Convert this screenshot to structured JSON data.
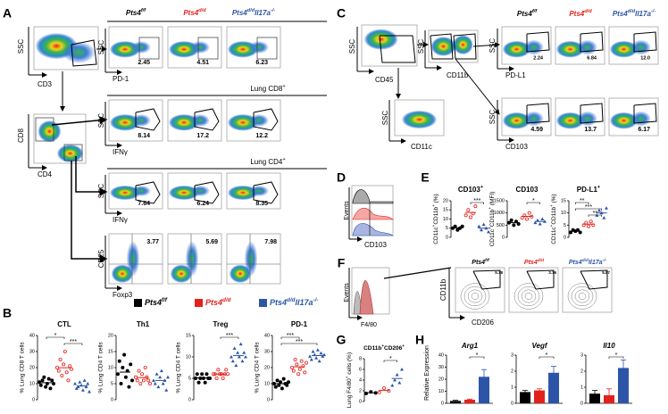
{
  "genotypes": [
    {
      "color": "#000000",
      "label": [
        {
          "t": "Pts4"
        },
        {
          "sup": "f/f"
        }
      ]
    },
    {
      "color": "#e3211c",
      "label": [
        {
          "t": "Pts4"
        },
        {
          "sup": "d/d"
        }
      ]
    },
    {
      "color": "#2c55a8",
      "label": [
        {
          "t": "Pts4"
        },
        {
          "sup": "d/d"
        },
        {
          "t": "Il17a"
        },
        {
          "sup": "-/-"
        }
      ]
    }
  ],
  "A": {
    "letter": "A",
    "gate1": {
      "y": "SSC",
      "x": "CD3"
    },
    "gate2": {
      "y": "CD8",
      "x": "CD4"
    },
    "rows": [
      {
        "y": "SSC",
        "x": "PD-1",
        "numbers": [
          "2.45",
          "4.51",
          "6.23"
        ]
      },
      {
        "section": [
          {
            "t": "Lung CD8"
          },
          {
            "sup": "+"
          }
        ],
        "y": "SSC",
        "x": "IFNγ",
        "numbers": [
          "8.14",
          "17.2",
          "12.2"
        ]
      },
      {
        "section": [
          {
            "t": "Lung CD4"
          },
          {
            "sup": "+"
          }
        ],
        "y": "SSC",
        "x": "IFNγ",
        "numbers": [
          "7.64",
          "6.24",
          "8.35"
        ]
      },
      {
        "y": "CD25",
        "x": "Foxp3",
        "numbers": [
          "3.77",
          "5.69",
          "7.98"
        ]
      }
    ]
  },
  "B": {
    "letter": "B",
    "charts": [
      {
        "title": "CTL",
        "ylabel": "% Lung CD8 T cells",
        "ylim": [
          0,
          40
        ],
        "yticks": [
          0,
          10,
          20,
          30,
          40
        ],
        "groups": [
          [
            11,
            9,
            12,
            14,
            8,
            10,
            13,
            7,
            12,
            10
          ],
          [
            20,
            18,
            25,
            15,
            22,
            30,
            17,
            12,
            21,
            19
          ],
          [
            10,
            7,
            8,
            11,
            9,
            6,
            12,
            8,
            10,
            5
          ]
        ],
        "sig": {
          "1-2": "*",
          "2-3": "***"
        }
      },
      {
        "title": "Th1",
        "ylabel": "% Lung CD4 T cells",
        "ylim": [
          0,
          20
        ],
        "yticks": [
          0,
          5,
          10,
          15,
          20
        ],
        "groups": [
          [
            8,
            12,
            5,
            10,
            14,
            7,
            9,
            4,
            11,
            6
          ],
          [
            7,
            6,
            9,
            5,
            8,
            6,
            10,
            7,
            6,
            5
          ],
          [
            6,
            5,
            8,
            4,
            7,
            9,
            5,
            6,
            3,
            7
          ]
        ],
        "sig": {}
      },
      {
        "title": "Treg",
        "ylabel": "% Lung CD4 T cells",
        "ylim": [
          0,
          15
        ],
        "yticks": [
          0,
          5,
          10,
          15
        ],
        "groups": [
          [
            5,
            6,
            4,
            5,
            6,
            5,
            4,
            6,
            5,
            5
          ],
          [
            6,
            6,
            5,
            7,
            6,
            6,
            5,
            6,
            7,
            6
          ],
          [
            10,
            9,
            12,
            8,
            11,
            10,
            13,
            9,
            11,
            10
          ]
        ],
        "sig": {
          "2-3": "***"
        }
      },
      {
        "title": "PD-1",
        "ylabel": "% Lung CD4 T cells",
        "ylim": [
          0,
          40
        ],
        "yticks": [
          0,
          10,
          20,
          30,
          40
        ],
        "groups": [
          [
            10,
            8,
            12,
            9,
            11,
            7,
            13,
            10,
            9,
            11
          ],
          [
            20,
            18,
            25,
            22,
            16,
            19,
            24,
            21,
            17,
            23
          ],
          [
            27,
            25,
            30,
            28,
            26,
            31,
            24,
            29,
            27,
            28
          ]
        ],
        "sig": {
          "1-2": "***",
          "1-3": "***"
        }
      }
    ]
  },
  "C": {
    "letter": "C",
    "gate1": {
      "y": "SSC",
      "x": "CD45"
    },
    "gate2": {
      "y": "SSC",
      "x": "CD11b"
    },
    "gate3": {
      "y": "SSC",
      "x": "CD11c"
    },
    "rows": [
      {
        "y": "SSC",
        "x": "PD-L1",
        "numbers": [
          "2.24",
          "6.84",
          "12.0"
        ]
      },
      {
        "y": "SSC",
        "x": "CD103",
        "numbers": [
          "4.59",
          "13.7",
          "6.17"
        ]
      }
    ]
  },
  "D": {
    "letter": "D",
    "y": "Events",
    "x": "CD103"
  },
  "E": {
    "letter": "E",
    "charts": [
      {
        "title": [
          {
            "t": "CD103"
          },
          {
            "sup": "+"
          }
        ],
        "ylabel": [
          {
            "t": "CD11c"
          },
          {
            "sup": "+"
          },
          {
            "t": "CD11b"
          },
          {
            "sup": "+"
          },
          {
            "t": " (%)"
          }
        ],
        "ylim": [
          0,
          20
        ],
        "yticks": [
          0,
          5,
          10,
          15,
          20
        ],
        "groups": [
          [
            5,
            6,
            4,
            5,
            6
          ],
          [
            12,
            15,
            11,
            13,
            17
          ],
          [
            6,
            4,
            7,
            5,
            3
          ]
        ],
        "sig": {
          "2-3": "***"
        }
      },
      {
        "title": "CD103",
        "ylabel": [
          {
            "t": "CD11c"
          },
          {
            "sup": "+"
          },
          {
            "t": "CD11b"
          },
          {
            "sup": "+"
          },
          {
            "t": " (MFI)"
          }
        ],
        "ylim": [
          0,
          1500
        ],
        "yticks": [
          0,
          500,
          1000,
          1500
        ],
        "groups": [
          [
            600,
            700,
            500,
            650,
            550
          ],
          [
            800,
            900,
            750,
            1000,
            850
          ],
          [
            600,
            700,
            550,
            750,
            650
          ]
        ],
        "sig": {
          "2-3": "*"
        }
      },
      {
        "title": [
          {
            "t": "PD-L1"
          },
          {
            "sup": "+"
          }
        ],
        "ylabel": [
          {
            "t": "CD11c"
          },
          {
            "sup": "+"
          },
          {
            "t": "CD11b"
          },
          {
            "sup": "+"
          },
          {
            "t": " (%)"
          }
        ],
        "ylim": [
          0,
          15
        ],
        "yticks": [
          0,
          5,
          10,
          15
        ],
        "groups": [
          [
            2,
            3,
            2.5,
            3,
            2
          ],
          [
            5,
            6,
            4.5,
            6.5,
            5
          ],
          [
            9,
            11,
            10,
            8,
            12
          ]
        ],
        "sig": {
          "1-2": "**",
          "1-3": "***",
          "2-3": "**"
        }
      }
    ]
  },
  "F": {
    "letter": "F",
    "hist": {
      "y": "Events",
      "x": "F4/80"
    },
    "y": "CD11b",
    "x": "CD206",
    "numbers": [
      "5.78",
      "3.76",
      "5.87"
    ]
  },
  "G": {
    "letter": "G",
    "chart": {
      "title": [
        {
          "t": "CD11b"
        },
        {
          "sup": "+"
        },
        {
          "t": "CD206"
        },
        {
          "sup": "+"
        }
      ],
      "ylabel": [
        {
          "t": "Lung F4/80"
        },
        {
          "sup": "+"
        },
        {
          "t": " cells (%)"
        }
      ],
      "ylim": [
        0,
        8
      ],
      "yticks": [
        0,
        2,
        4,
        6,
        8
      ],
      "groups": [
        [
          1.5,
          1.8,
          1.6
        ],
        [
          1.7,
          2.5,
          2.0
        ],
        [
          3,
          4,
          5,
          3.5,
          6
        ]
      ],
      "sig": {
        "2-3": "*"
      }
    }
  },
  "H": {
    "letter": "H",
    "ylabel": "Relative Expression",
    "charts": [
      {
        "title": "Arg1",
        "ylim": [
          0,
          40
        ],
        "yticks": [
          0,
          10,
          20,
          30,
          40
        ],
        "values": [
          2,
          3,
          22
        ],
        "errors": [
          0.5,
          0.5,
          6
        ],
        "sig": {
          "2-3": "*"
        }
      },
      {
        "title": "Vegf",
        "ylim": [
          0,
          3
        ],
        "yticks": [
          0,
          1,
          2,
          3
        ],
        "values": [
          0.7,
          0.8,
          1.9
        ],
        "errors": [
          0.1,
          0.1,
          0.4
        ],
        "sig": {
          "2-3": "*"
        }
      },
      {
        "title": "Il10",
        "ylim": [
          0,
          3
        ],
        "yticks": [
          0,
          1,
          2,
          3
        ],
        "values": [
          0.6,
          0.5,
          2.2
        ],
        "errors": [
          0.2,
          0.4,
          0.5
        ],
        "sig": {
          "2-3": "*"
        }
      }
    ]
  }
}
